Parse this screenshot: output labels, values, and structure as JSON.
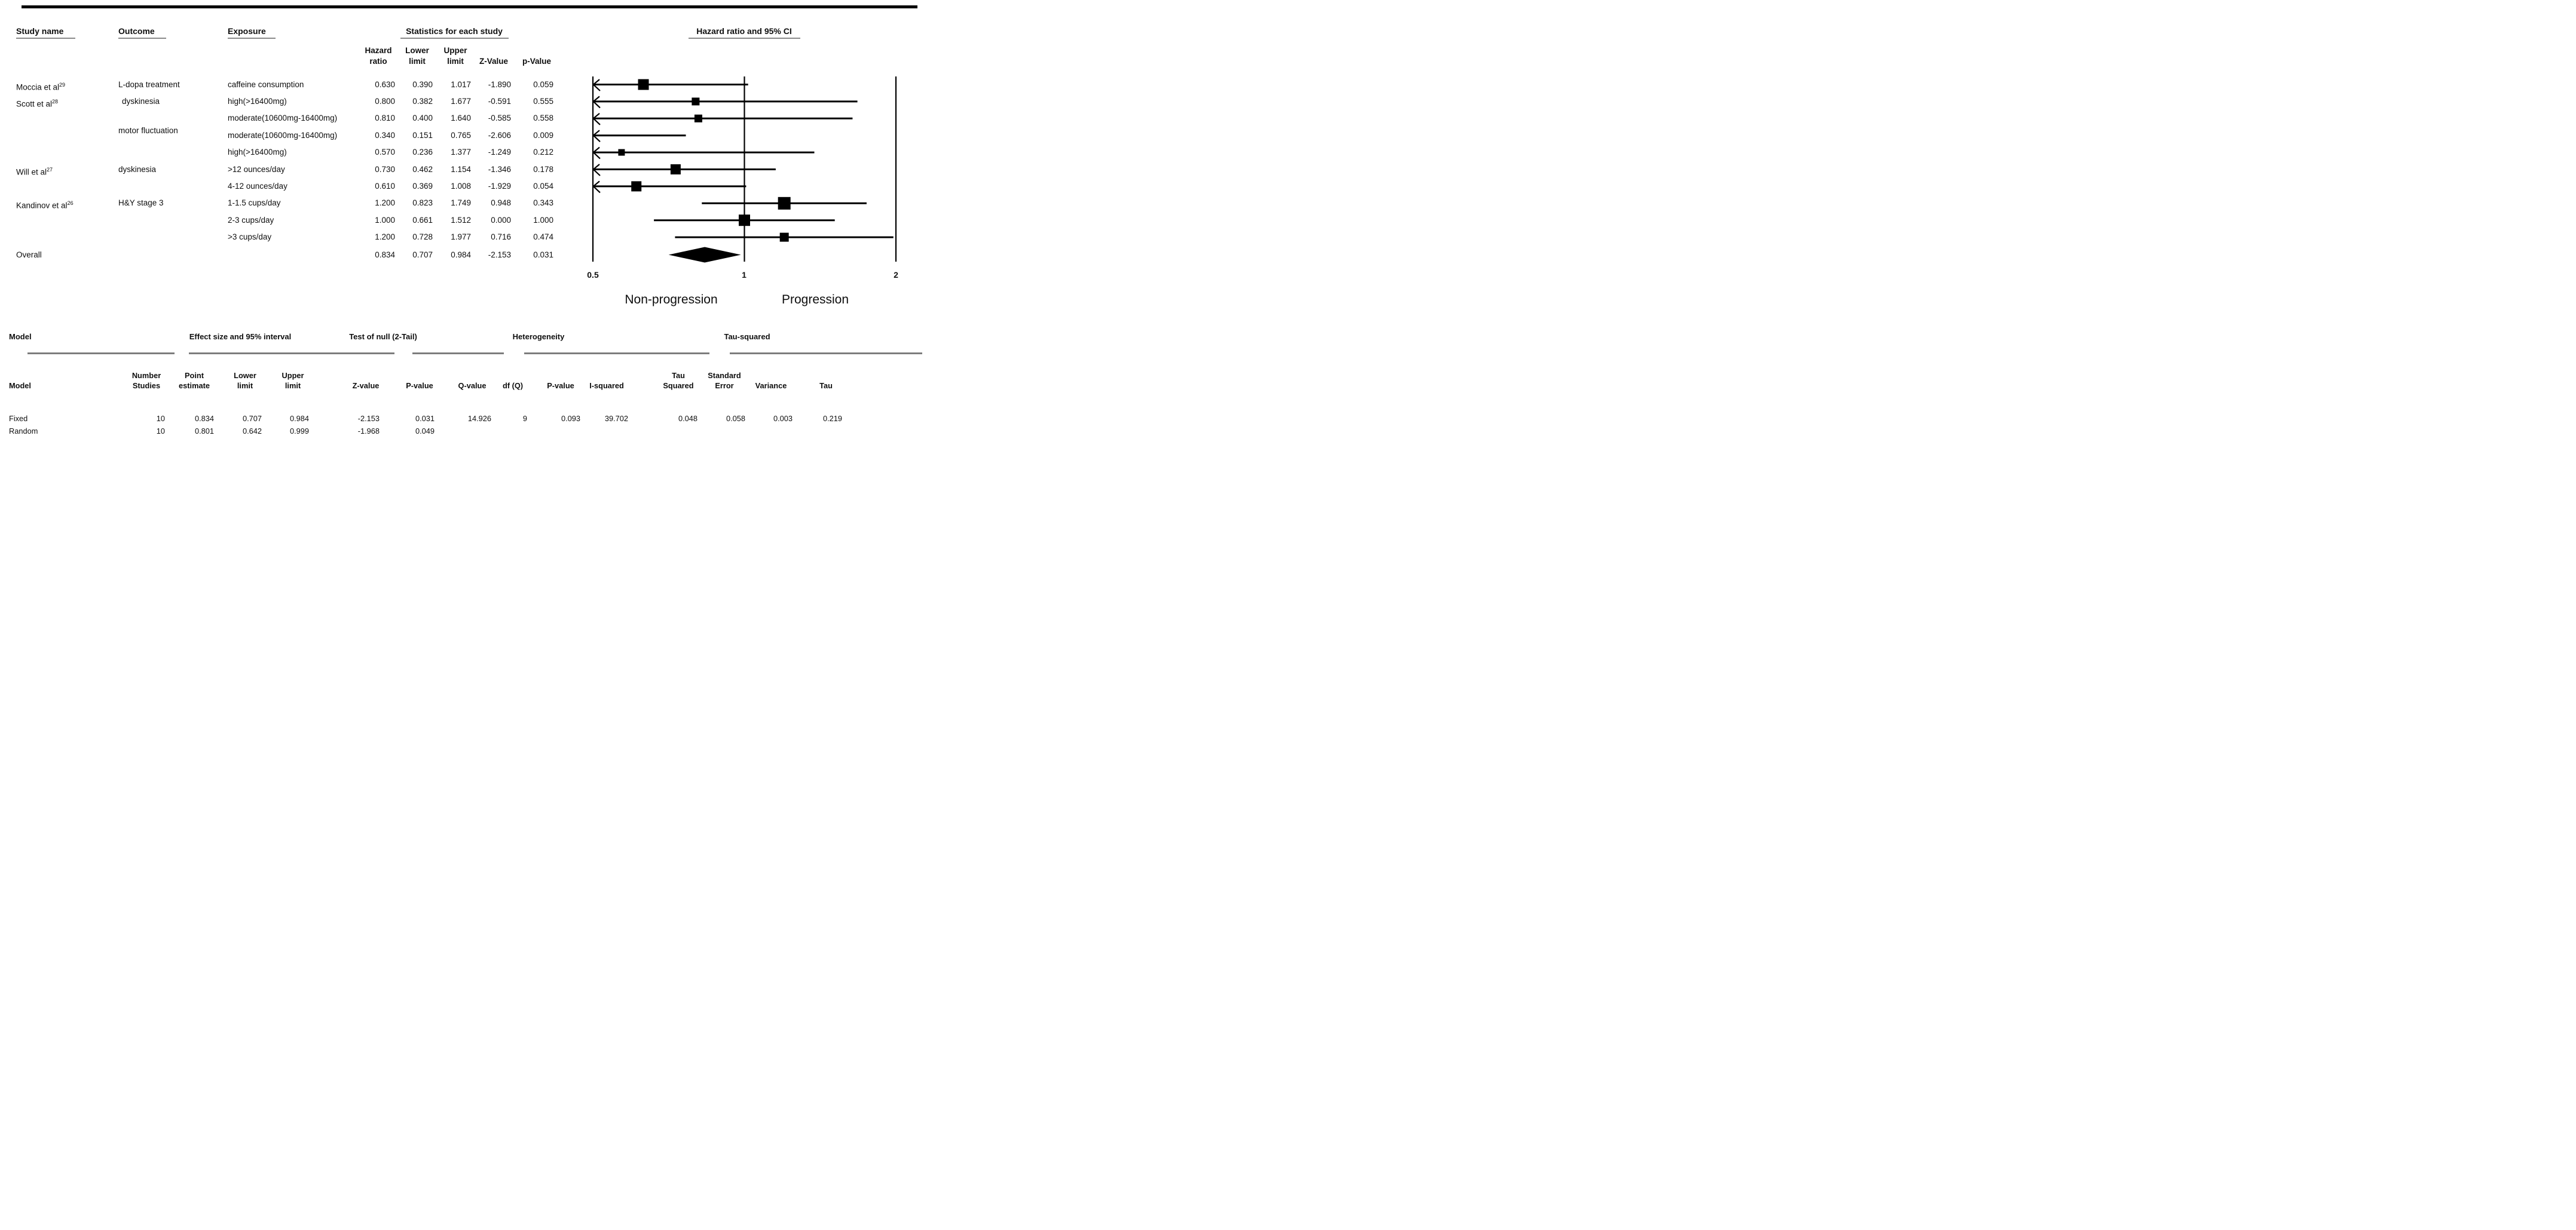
{
  "top_table": {
    "columns": {
      "study": "Study name",
      "outcome": "Outcome",
      "exposure": "Exposure",
      "stats_group": "Statistics for each study",
      "plot_group": "Hazard ratio and 95% CI",
      "stat_headers": [
        {
          "line1": "Hazard",
          "line2": "ratio"
        },
        {
          "line1": "Lower",
          "line2": "limit"
        },
        {
          "line1": "Upper",
          "line2": "limit"
        },
        {
          "line1": "",
          "line2": "Z-Value"
        },
        {
          "line1": "",
          "line2": "p-Value"
        }
      ]
    },
    "rows": [
      {
        "study": "Moccia et al",
        "study_sup": "29",
        "outcome": "L-dopa treatment",
        "exposure": "caffeine consumption",
        "hazard_ratio": "0.630",
        "lower_limit": "0.390",
        "upper_limit": "1.017",
        "z_value": "-1.890",
        "p_value": "0.059"
      },
      {
        "study": "Scott et al",
        "study_sup": "28",
        "outcome": "dyskinesia",
        "outcome_indent": 6,
        "exposure": "high(>16400mg)",
        "hazard_ratio": "0.800",
        "lower_limit": "0.382",
        "upper_limit": "1.677",
        "z_value": "-0.591",
        "p_value": "0.555"
      },
      {
        "exposure": "moderate(10600mg-16400mg)",
        "hazard_ratio": "0.810",
        "lower_limit": "0.400",
        "upper_limit": "1.640",
        "z_value": "-0.585",
        "p_value": "0.558"
      },
      {
        "outcome": "motor fluctuation",
        "outcome_dy": -8,
        "exposure": "moderate(10600mg-16400mg)",
        "hazard_ratio": "0.340",
        "lower_limit": "0.151",
        "upper_limit": "0.765",
        "z_value": "-2.606",
        "p_value": "0.009"
      },
      {
        "exposure": "high(>16400mg)",
        "hazard_ratio": "0.570",
        "lower_limit": "0.236",
        "upper_limit": "1.377",
        "z_value": "-1.249",
        "p_value": "0.212"
      },
      {
        "study": "Will et al",
        "study_sup": "27",
        "outcome": "dyskinesia",
        "exposure": ">12 ounces/day",
        "hazard_ratio": "0.730",
        "lower_limit": "0.462",
        "upper_limit": "1.154",
        "z_value": "-1.346",
        "p_value": "0.178"
      },
      {
        "exposure": "4-12 ounces/day",
        "hazard_ratio": "0.610",
        "lower_limit": "0.369",
        "upper_limit": "1.008",
        "z_value": "-1.929",
        "p_value": "0.054"
      },
      {
        "study": "Kandinov et al",
        "study_sup": "26",
        "outcome": "H&Y stage 3",
        "exposure": "1-1.5 cups/day",
        "hazard_ratio": "1.200",
        "lower_limit": "0.823",
        "upper_limit": "1.749",
        "z_value": "0.948",
        "p_value": "0.343"
      },
      {
        "exposure": "2-3 cups/day",
        "hazard_ratio": "1.000",
        "lower_limit": "0.661",
        "upper_limit": "1.512",
        "z_value": "0.000",
        "p_value": "1.000"
      },
      {
        "exposure": ">3 cups/day",
        "hazard_ratio": "1.200",
        "lower_limit": "0.728",
        "upper_limit": "1.977",
        "z_value": "0.716",
        "p_value": "0.474"
      },
      {
        "study": "Overall",
        "row_type": "overall",
        "hazard_ratio": "0.834",
        "lower_limit": "0.707",
        "upper_limit": "0.984",
        "z_value": "-2.153",
        "p_value": "0.031"
      }
    ]
  },
  "chart_data": {
    "type": "forest",
    "title": "Hazard ratio and 95% CI",
    "x_scale": "log",
    "xlim": [
      0.5,
      2
    ],
    "axis_ticks": [
      "0.5",
      "1",
      "2"
    ],
    "axis_tick_values": [
      0.5,
      1,
      2
    ],
    "left_label": "Non-progression",
    "right_label": "Progression",
    "points": [
      {
        "label": "caffeine consumption",
        "hr": 0.63,
        "lower": 0.39,
        "upper": 1.017,
        "box": 18
      },
      {
        "label": "high(>16400mg)",
        "hr": 0.8,
        "lower": 0.382,
        "upper": 1.677,
        "box": 13
      },
      {
        "label": "moderate(10600mg-16400mg)",
        "hr": 0.81,
        "lower": 0.4,
        "upper": 1.64,
        "box": 13
      },
      {
        "label": "moderate(10600mg-16400mg)",
        "hr": 0.34,
        "lower": 0.151,
        "upper": 0.765,
        "box": 0
      },
      {
        "label": "high(>16400mg)",
        "hr": 0.57,
        "lower": 0.236,
        "upper": 1.377,
        "box": 11
      },
      {
        "label": ">12 ounces/day",
        "hr": 0.73,
        "lower": 0.462,
        "upper": 1.154,
        "box": 17
      },
      {
        "label": "4-12 ounces/day",
        "hr": 0.61,
        "lower": 0.369,
        "upper": 1.008,
        "box": 17
      },
      {
        "label": "1-1.5 cups/day",
        "hr": 1.2,
        "lower": 0.823,
        "upper": 1.749,
        "box": 21
      },
      {
        "label": "2-3 cups/day",
        "hr": 1.0,
        "lower": 0.661,
        "upper": 1.512,
        "box": 19
      },
      {
        "label": ">3 cups/day",
        "hr": 1.2,
        "lower": 0.728,
        "upper": 1.977,
        "box": 15
      }
    ],
    "overall": {
      "hr": 0.834,
      "lower": 0.707,
      "upper": 0.984
    }
  },
  "bottom_table": {
    "model_group_label": "Model",
    "effect_group_label": "Effect size and 95% interval",
    "test_group_label": "Test of null (2-Tail)",
    "heterogeneity_group_label": "Heterogeneity",
    "tau_group_label": "Tau-squared",
    "sub_headers": [
      {
        "line1": "",
        "line2": "Model"
      },
      {
        "line1": "Number",
        "line2": "Studies"
      },
      {
        "line1": "Point",
        "line2": "estimate"
      },
      {
        "line1": "Lower",
        "line2": "limit"
      },
      {
        "line1": "Upper",
        "line2": "limit"
      },
      {
        "line1": "",
        "line2": "Z-value"
      },
      {
        "line1": "",
        "line2": "P-value"
      },
      {
        "line1": "",
        "line2": "Q-value"
      },
      {
        "line1": "",
        "line2": "df (Q)"
      },
      {
        "line1": "",
        "line2": "P-value"
      },
      {
        "line1": "",
        "line2": "I-squared"
      },
      {
        "line1": "Tau",
        "line2": "Squared"
      },
      {
        "line1": "Standard",
        "line2": "Error"
      },
      {
        "line1": "",
        "line2": "Variance"
      },
      {
        "line1": "",
        "line2": "Tau"
      }
    ],
    "rows": [
      {
        "model": "Fixed",
        "values": [
          "10",
          "0.834",
          "0.707",
          "0.984",
          "-2.153",
          "0.031",
          "14.926",
          "9",
          "0.093",
          "39.702",
          "0.048",
          "0.058",
          "0.003",
          "0.219"
        ]
      },
      {
        "model": "Random",
        "values": [
          "10",
          "0.801",
          "0.642",
          "0.999",
          "-1.968",
          "0.049",
          "",
          "",
          "",
          "",
          "",
          "",
          "",
          ""
        ]
      }
    ]
  }
}
